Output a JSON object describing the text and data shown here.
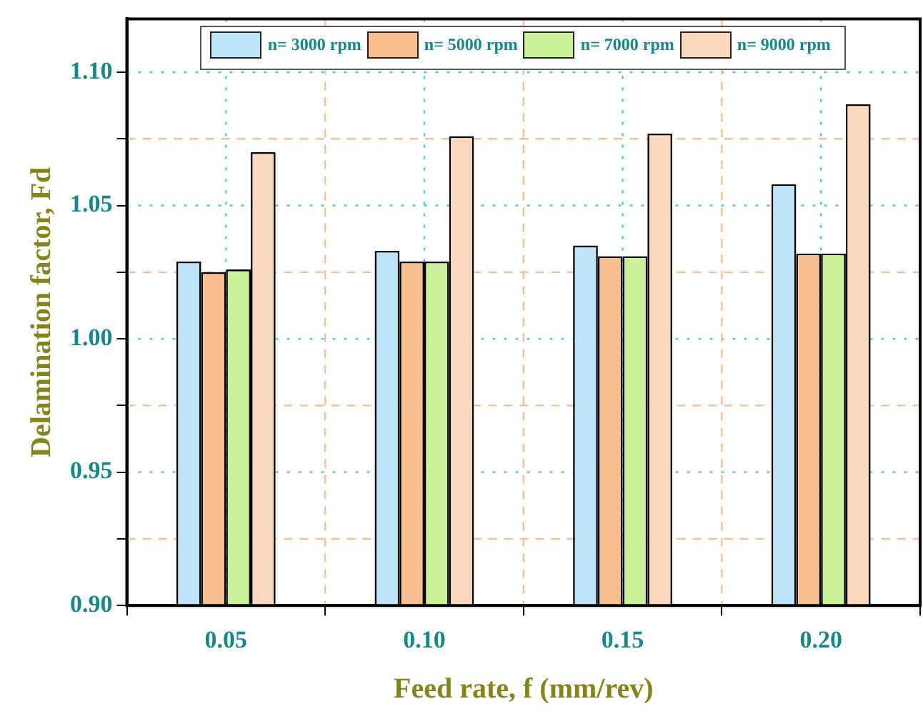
{
  "chart_data": {
    "type": "bar",
    "xlabel": "Feed rate, f (mm/rev)",
    "ylabel": "Delamination factor, Fd",
    "categories": [
      "0.05",
      "0.10",
      "0.15",
      "0.20"
    ],
    "series": [
      {
        "name": "n= 3000 rpm",
        "color": "#bde4f8",
        "values": [
          1.029,
          1.033,
          1.035,
          1.058
        ]
      },
      {
        "name": "n= 5000 rpm",
        "color": "#f8c090",
        "values": [
          1.025,
          1.029,
          1.031,
          1.032
        ]
      },
      {
        "name": "n= 7000 rpm",
        "color": "#cdf09a",
        "values": [
          1.026,
          1.029,
          1.031,
          1.032
        ]
      },
      {
        "name": "n= 9000 rpm",
        "color": "#fbd8bc",
        "values": [
          1.07,
          1.076,
          1.077,
          1.088
        ]
      }
    ],
    "ylim": [
      0.9,
      1.12
    ],
    "yticks": [
      {
        "value": 0.9,
        "label": "0.90"
      },
      {
        "value": 0.925,
        "label": null
      },
      0.95,
      {
        "value": 0.975,
        "label": null
      },
      {
        "value": 1.0,
        "label": "1.00"
      },
      {
        "value": 1.025,
        "label": null
      },
      1.05,
      {
        "value": 1.075,
        "label": null
      },
      {
        "value": 1.1,
        "label": "1.10"
      }
    ],
    "grid": true,
    "legend": "top"
  }
}
